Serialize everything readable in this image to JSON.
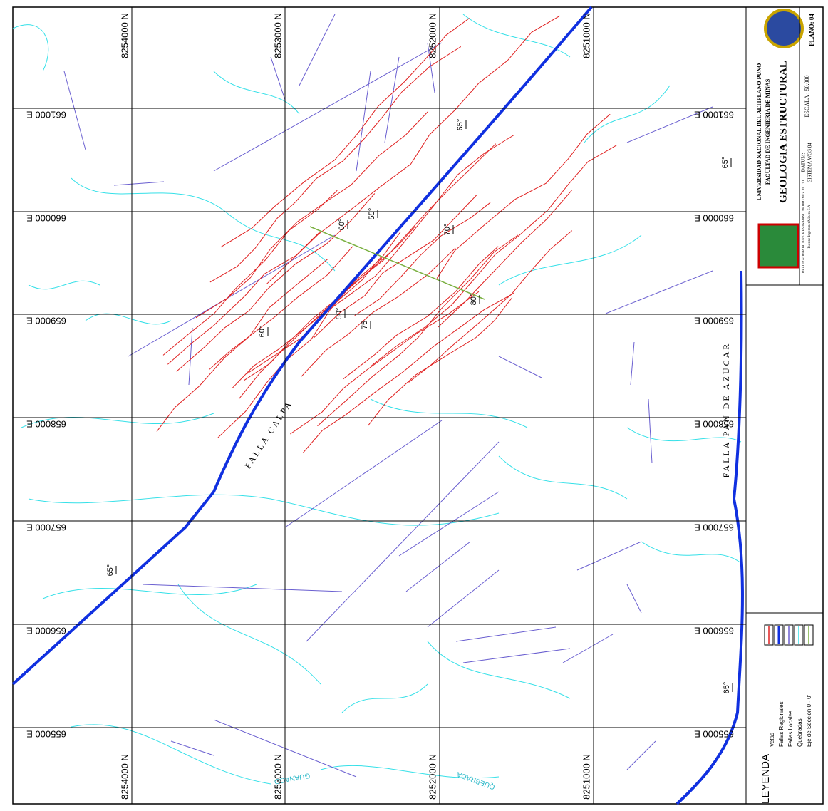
{
  "title_block": {
    "university": "UNIVERSIDAD NACIONAL DEL ALTIPLANO PUNO",
    "faculty": "FACULTAD DE INGENIERIA DE MINAS",
    "title": "GEOLOGIA ESTRUCTURAL",
    "author": "REALIZADO POR: Bach. KEVIN BAYLON JIMENEZ PILCO",
    "source": "Fuente: Ingemmet Minera S.A",
    "datum": "DATUM:",
    "datum_value": "SISTEMA WGS 84",
    "scale": "ESCALA : 50,000",
    "sheet": "PLANO: 04"
  },
  "grid": {
    "northings": [
      "8254000 N",
      "8253000 N",
      "8252000 N",
      "8251000 N"
    ],
    "eastings": [
      "661000 E",
      "660000 E",
      "659000 E",
      "658000 E",
      "657000 E",
      "656000 E",
      "655000 E"
    ]
  },
  "map_labels": {
    "faults": [
      "FALLA CALPA",
      "FALLA PAN DE AZUCAR"
    ],
    "streams": [
      "QUEBRADA",
      "GUANACO"
    ],
    "dips": [
      "65°",
      "60°",
      "50°",
      "75",
      "60°",
      "55°",
      "70°",
      "80°",
      "65°",
      "65°",
      "65°"
    ]
  },
  "legend": {
    "title": "LEYENDA",
    "items": [
      "Vetas",
      "Fallas Regionales",
      "Fallas Locales",
      "Quebradas",
      "Eje de Seccion 0 - 0'"
    ]
  }
}
